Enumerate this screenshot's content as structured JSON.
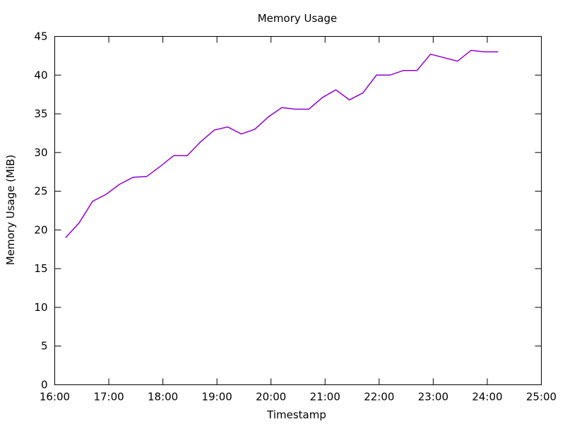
{
  "chart_data": {
    "type": "line",
    "title": "Memory Usage",
    "xlabel": "Timestamp",
    "ylabel": "Memory Usage (MiB)",
    "xlim_hours": [
      16,
      25
    ],
    "ylim": [
      0,
      45
    ],
    "x_ticks": [
      {
        "value": 16,
        "label": "16:00"
      },
      {
        "value": 17,
        "label": "17:00"
      },
      {
        "value": 18,
        "label": "18:00"
      },
      {
        "value": 19,
        "label": "19:00"
      },
      {
        "value": 20,
        "label": "20:00"
      },
      {
        "value": 21,
        "label": "21:00"
      },
      {
        "value": 22,
        "label": "22:00"
      },
      {
        "value": 23,
        "label": "23:00"
      },
      {
        "value": 24,
        "label": "24:00"
      },
      {
        "value": 25,
        "label": "25:00"
      }
    ],
    "y_ticks": [
      {
        "value": 0,
        "label": "0"
      },
      {
        "value": 5,
        "label": "5"
      },
      {
        "value": 10,
        "label": "10"
      },
      {
        "value": 15,
        "label": "15"
      },
      {
        "value": 20,
        "label": "20"
      },
      {
        "value": 25,
        "label": "25"
      },
      {
        "value": 30,
        "label": "30"
      },
      {
        "value": 35,
        "label": "35"
      },
      {
        "value": 40,
        "label": "40"
      },
      {
        "value": 45,
        "label": "45"
      }
    ],
    "grid": false,
    "legend": "none",
    "series": [
      {
        "name": "memory",
        "color": "#9400d3",
        "x": [
          16.2,
          16.45,
          16.7,
          16.95,
          17.2,
          17.45,
          17.7,
          17.95,
          18.2,
          18.45,
          18.7,
          18.95,
          19.2,
          19.45,
          19.7,
          19.95,
          20.2,
          20.45,
          20.7,
          20.95,
          21.2,
          21.45,
          21.7,
          21.95,
          22.2,
          22.45,
          22.7,
          22.95,
          23.45,
          23.7,
          23.95,
          24.2
        ],
        "values": [
          19.0,
          20.9,
          23.7,
          24.6,
          25.9,
          26.8,
          26.9,
          28.2,
          29.6,
          29.6,
          31.4,
          32.9,
          33.3,
          32.4,
          33.0,
          34.6,
          35.8,
          35.6,
          35.6,
          37.1,
          38.1,
          36.8,
          37.7,
          40.0,
          40.0,
          40.6,
          40.6,
          42.7,
          41.8,
          43.2,
          43.0,
          43.0
        ]
      }
    ]
  }
}
